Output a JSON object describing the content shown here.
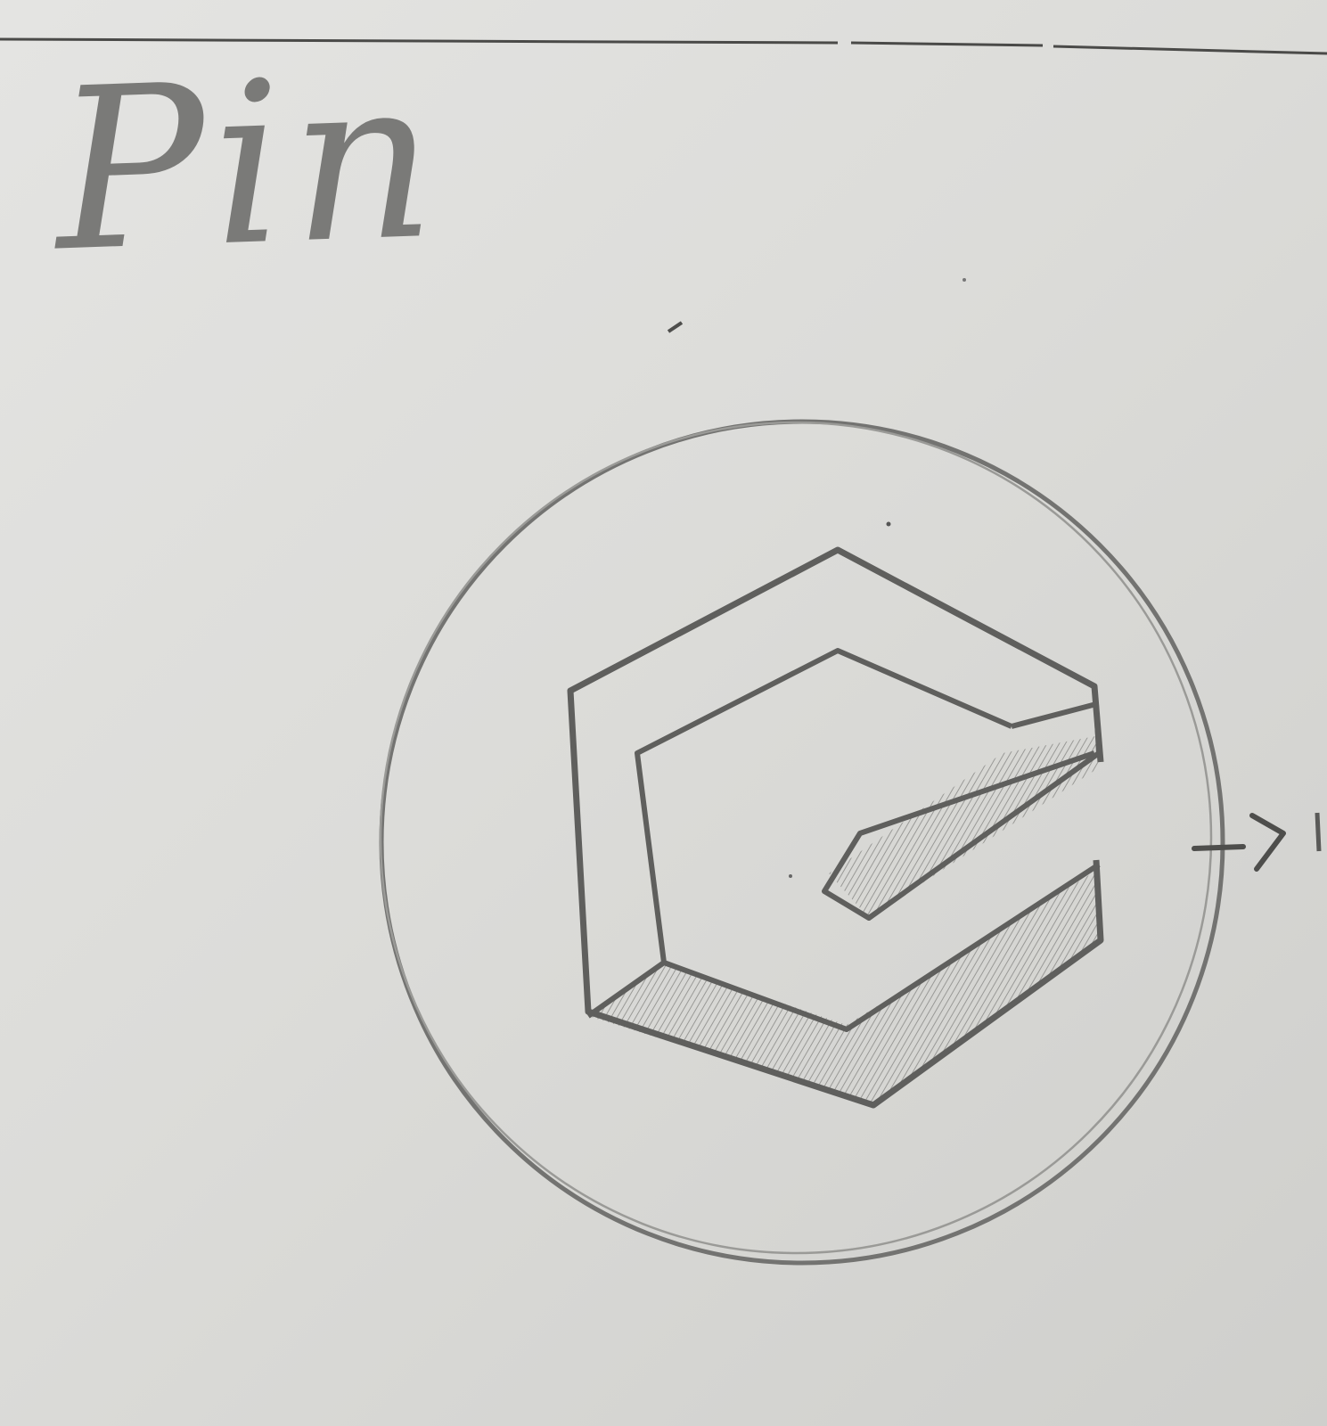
{
  "sketch": {
    "title": "Pin",
    "logo_icon": "hexagon-c-logo-icon",
    "colors": {
      "paper": "#dcdcda",
      "pencil": "#6b6b69",
      "shade": "#a7a7a4"
    }
  }
}
